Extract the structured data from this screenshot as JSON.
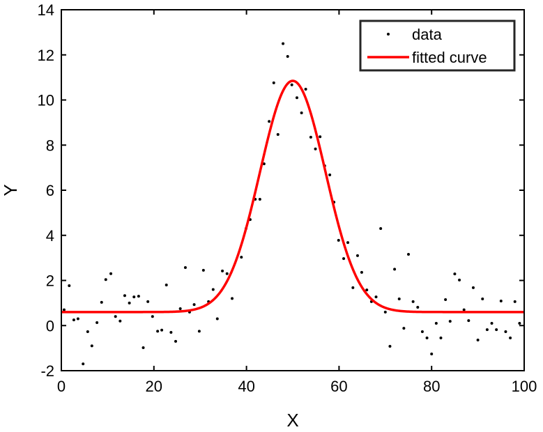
{
  "chart_data": {
    "type": "scatter",
    "title": "",
    "xlabel": "X",
    "ylabel": "Y",
    "xlim": [
      0,
      100
    ],
    "ylim": [
      -2,
      14
    ],
    "xticks": [
      0,
      20,
      40,
      60,
      80,
      100
    ],
    "yticks": [
      -2,
      0,
      2,
      4,
      6,
      8,
      10,
      12,
      14
    ],
    "grid": false,
    "legend_position": "top-right",
    "series": [
      {
        "name": "data",
        "style": "markers",
        "color": "#000000",
        "points": [
          [
            0.6,
            0.7
          ],
          [
            1.7,
            1.77
          ],
          [
            2.7,
            0.25
          ],
          [
            3.6,
            0.3
          ],
          [
            4.7,
            -1.7
          ],
          [
            5.7,
            -0.27
          ],
          [
            6.6,
            -0.9
          ],
          [
            7.7,
            0.13
          ],
          [
            8.7,
            1.03
          ],
          [
            9.6,
            2.04
          ],
          [
            10.7,
            2.3
          ],
          [
            11.7,
            0.4
          ],
          [
            12.7,
            0.2
          ],
          [
            13.7,
            1.33
          ],
          [
            14.7,
            1.0
          ],
          [
            15.7,
            1.27
          ],
          [
            16.7,
            1.3
          ],
          [
            17.7,
            -0.98
          ],
          [
            18.7,
            1.06
          ],
          [
            19.7,
            0.4
          ],
          [
            20.8,
            -0.25
          ],
          [
            21.7,
            -0.2
          ],
          [
            22.7,
            1.8
          ],
          [
            23.7,
            -0.3
          ],
          [
            24.7,
            -0.7
          ],
          [
            25.7,
            0.75
          ],
          [
            26.8,
            2.57
          ],
          [
            27.7,
            0.6
          ],
          [
            28.7,
            0.93
          ],
          [
            29.8,
            -0.25
          ],
          [
            30.7,
            2.45
          ],
          [
            31.8,
            1.06
          ],
          [
            32.8,
            1.6
          ],
          [
            33.7,
            0.3
          ],
          [
            34.8,
            2.42
          ],
          [
            35.8,
            2.3
          ],
          [
            36.9,
            1.2
          ],
          [
            38.9,
            3.03
          ],
          [
            39.9,
            4.3
          ],
          [
            40.8,
            4.7
          ],
          [
            41.9,
            5.6
          ],
          [
            42.9,
            5.6
          ],
          [
            43.8,
            7.17
          ],
          [
            44.9,
            9.05
          ],
          [
            45.9,
            10.76
          ],
          [
            46.8,
            8.47
          ],
          [
            47.9,
            12.5
          ],
          [
            48.9,
            11.93
          ],
          [
            49.8,
            10.67
          ],
          [
            50.9,
            10.1
          ],
          [
            51.9,
            9.43
          ],
          [
            52.8,
            10.48
          ],
          [
            53.9,
            8.35
          ],
          [
            54.9,
            7.83
          ],
          [
            55.9,
            8.37
          ],
          [
            56.9,
            7.08
          ],
          [
            58.0,
            6.68
          ],
          [
            58.9,
            5.47
          ],
          [
            59.9,
            3.78
          ],
          [
            61.0,
            2.97
          ],
          [
            61.9,
            3.68
          ],
          [
            63.0,
            1.68
          ],
          [
            64.0,
            3.1
          ],
          [
            64.9,
            2.36
          ],
          [
            66.0,
            1.58
          ],
          [
            67.0,
            1.06
          ],
          [
            68.0,
            1.27
          ],
          [
            69.0,
            4.3
          ],
          [
            70.0,
            0.6
          ],
          [
            71.0,
            -0.92
          ],
          [
            72.0,
            2.5
          ],
          [
            73.0,
            1.18
          ],
          [
            74.0,
            -0.12
          ],
          [
            75.0,
            3.16
          ],
          [
            76.0,
            1.06
          ],
          [
            77.0,
            0.81
          ],
          [
            78.0,
            -0.27
          ],
          [
            79.0,
            -0.55
          ],
          [
            80.0,
            -1.26
          ],
          [
            81.0,
            0.1
          ],
          [
            82.0,
            -0.55
          ],
          [
            83.0,
            1.15
          ],
          [
            84.0,
            0.19
          ],
          [
            85.0,
            2.29
          ],
          [
            86.0,
            2.02
          ],
          [
            87.0,
            0.7
          ],
          [
            88.0,
            0.22
          ],
          [
            89.0,
            1.68
          ],
          [
            90.0,
            -0.64
          ],
          [
            91.0,
            1.18
          ],
          [
            92.0,
            -0.18
          ],
          [
            93.0,
            0.1
          ],
          [
            94.0,
            -0.18
          ],
          [
            95.0,
            1.09
          ],
          [
            96.0,
            -0.27
          ],
          [
            97.0,
            -0.55
          ],
          [
            98.0,
            1.06
          ],
          [
            99.0,
            0.1
          ]
        ]
      },
      {
        "name": "fitted curve",
        "style": "line",
        "color": "#ff0000",
        "model": {
          "amplitude": 10.25,
          "center": 50,
          "width": 10,
          "offset": 0.6
        }
      }
    ]
  }
}
